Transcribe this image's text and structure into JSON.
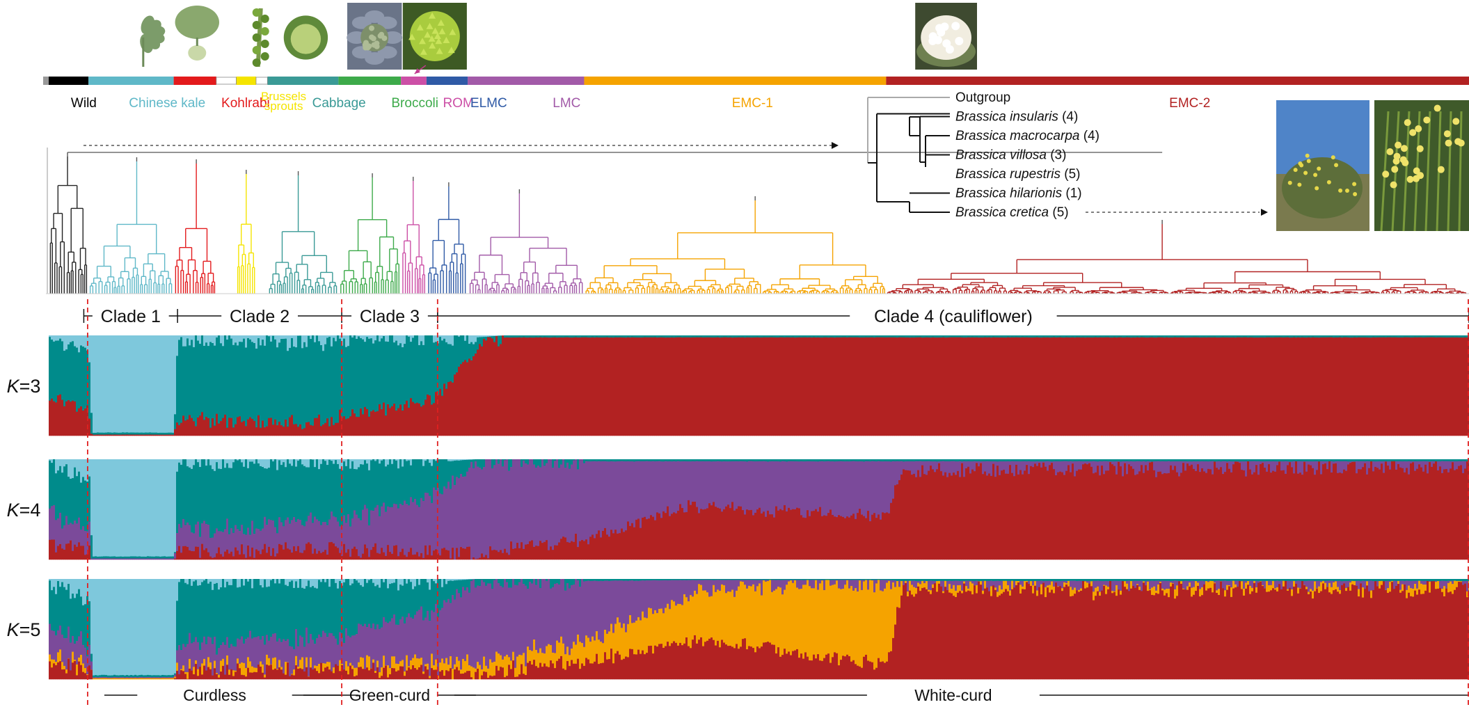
{
  "groups": [
    {
      "label": "Wild",
      "color": "#000000",
      "start": 0.0,
      "end": 0.028,
      "label_x": 0.0247
    },
    {
      "label": "Chinese kale",
      "color": "#5fb8c8",
      "start": 0.028,
      "end": 0.088,
      "label_x": 0.0834
    },
    {
      "label": "Kohlrabi",
      "color": "#e31a1c",
      "start": 0.088,
      "end": 0.118,
      "label_x": 0.1386
    },
    {
      "label": "Brussels sprouts",
      "color": "#f5e400",
      "start": 0.132,
      "end": 0.146,
      "label_x": 0.1654
    },
    {
      "label": "Cabbage",
      "color": "#3a9a96",
      "start": 0.154,
      "end": 0.204,
      "label_x": 0.2044
    },
    {
      "label": "Broccoli",
      "color": "#3daa4a",
      "start": 0.204,
      "end": 0.248,
      "label_x": 0.2578
    },
    {
      "label": "ROM",
      "color": "#cc4fa6",
      "start": 0.248,
      "end": 0.266,
      "label_x": 0.2884
    },
    {
      "label": "ELMC",
      "color": "#2f5aa6",
      "start": 0.266,
      "end": 0.295,
      "label_x": 0.3098
    },
    {
      "label": "LMC",
      "color": "#a25aa8",
      "start": 0.295,
      "end": 0.377,
      "label_x": 0.3647
    },
    {
      "label": "EMC-1",
      "color": "#f5a300",
      "start": 0.377,
      "end": 0.5896,
      "label_x": 0.4955
    },
    {
      "label": "EMC-2",
      "color": "#b22222",
      "start": 0.5896,
      "end": 1.0,
      "label_x": 0.8034
    }
  ],
  "gap_segments": [
    {
      "start": 0.118,
      "end": 0.132
    },
    {
      "start": 0.146,
      "end": 0.154
    }
  ],
  "photos": [
    {
      "name": "wild-cabbage-photo",
      "x": 0.0457,
      "w": 0.0417,
      "kind": "leafy"
    },
    {
      "name": "chinese-kale-photo",
      "x": 0.087,
      "w": 0.035,
      "kind": "kale"
    },
    {
      "name": "brussels-sprouts-photo",
      "x": 0.1358,
      "w": 0.027,
      "kind": "sprouts"
    },
    {
      "name": "cabbage-photo",
      "x": 0.1645,
      "w": 0.033,
      "kind": "cabbage"
    },
    {
      "name": "broccoli-photo",
      "x": 0.2102,
      "w": 0.0384,
      "kind": "broccoli"
    },
    {
      "name": "romanesco-photo",
      "x": 0.2493,
      "w": 0.0451,
      "kind": "romanesco"
    },
    {
      "name": "cauliflower-photo",
      "x": 0.6101,
      "w": 0.0435,
      "kind": "cauliflower"
    }
  ],
  "outgroup": {
    "items": [
      {
        "taxon": "Outgroup",
        "count": "",
        "italic": false
      },
      {
        "taxon": "Brassica insularis",
        "count": "(4)",
        "italic": true
      },
      {
        "taxon": "Brassica macrocarpa",
        "count": "(4)",
        "italic": true
      },
      {
        "taxon": "Brassica villosa",
        "count": "(3)",
        "italic": true
      },
      {
        "taxon": "Brassica rupestris",
        "count": "(5)",
        "italic": true
      },
      {
        "taxon": "Brassica hilarionis",
        "count": "(1)",
        "italic": true
      },
      {
        "taxon": "Brassica cretica",
        "count": "(5)",
        "italic": true
      }
    ]
  },
  "clades": [
    {
      "label": "Clade 1",
      "start": 0.0247,
      "end": 0.0907,
      "ticks": true
    },
    {
      "label": "Clade 2",
      "start": 0.0907,
      "end": 0.2063,
      "ticks": false
    },
    {
      "label": "Clade 3",
      "start": 0.2063,
      "end": 0.2738,
      "ticks": true
    },
    {
      "label": "Clade 4 (cauliflower)",
      "start": 0.2738,
      "end": 1.0,
      "ticks": true
    }
  ],
  "structure": {
    "k_label_prefix": "K",
    "panels": [
      {
        "k": "3",
        "label": "=3",
        "colors": [
          "#7ec8dc",
          "#008b8b",
          "#b22222"
        ],
        "profile": [
          {
            "x": 0.0,
            "p": [
              0.05,
              0.6,
              0.35
            ]
          },
          {
            "x": 0.028,
            "p": [
              0.2,
              0.55,
              0.25
            ]
          },
          {
            "x": 0.03,
            "p": [
              0.97,
              0.02,
              0.01
            ]
          },
          {
            "x": 0.088,
            "p": [
              0.97,
              0.02,
              0.01
            ]
          },
          {
            "x": 0.09,
            "p": [
              0.05,
              0.8,
              0.15
            ]
          },
          {
            "x": 0.2,
            "p": [
              0.08,
              0.78,
              0.14
            ]
          },
          {
            "x": 0.206,
            "p": [
              0.05,
              0.75,
              0.2
            ]
          },
          {
            "x": 0.27,
            "p": [
              0.03,
              0.6,
              0.37
            ]
          },
          {
            "x": 0.3,
            "p": [
              0.02,
              0.12,
              0.86
            ]
          },
          {
            "x": 0.32,
            "p": [
              0.0,
              0.02,
              0.98
            ]
          },
          {
            "x": 1.0,
            "p": [
              0.0,
              0.02,
              0.98
            ]
          }
        ]
      },
      {
        "k": "4",
        "label": "=4",
        "colors": [
          "#7ec8dc",
          "#008b8b",
          "#7b4a9a",
          "#b22222"
        ],
        "profile": [
          {
            "x": 0.0,
            "p": [
              0.05,
              0.5,
              0.3,
              0.15
            ]
          },
          {
            "x": 0.028,
            "p": [
              0.2,
              0.5,
              0.2,
              0.1
            ]
          },
          {
            "x": 0.03,
            "p": [
              0.97,
              0.02,
              0.01,
              0.0
            ]
          },
          {
            "x": 0.088,
            "p": [
              0.97,
              0.02,
              0.01,
              0.0
            ]
          },
          {
            "x": 0.09,
            "p": [
              0.03,
              0.68,
              0.22,
              0.07
            ]
          },
          {
            "x": 0.2,
            "p": [
              0.03,
              0.55,
              0.3,
              0.12
            ]
          },
          {
            "x": 0.206,
            "p": [
              0.03,
              0.55,
              0.32,
              0.1
            ]
          },
          {
            "x": 0.27,
            "p": [
              0.03,
              0.35,
              0.55,
              0.07
            ]
          },
          {
            "x": 0.3,
            "p": [
              0.0,
              0.05,
              0.88,
              0.07
            ]
          },
          {
            "x": 0.377,
            "p": [
              0.0,
              0.02,
              0.78,
              0.2
            ]
          },
          {
            "x": 0.45,
            "p": [
              0.0,
              0.02,
              0.45,
              0.53
            ]
          },
          {
            "x": 0.5896,
            "p": [
              0.0,
              0.02,
              0.55,
              0.43
            ]
          },
          {
            "x": 0.6,
            "p": [
              0.0,
              0.02,
              0.1,
              0.88
            ]
          },
          {
            "x": 1.0,
            "p": [
              0.0,
              0.02,
              0.06,
              0.92
            ]
          }
        ]
      },
      {
        "k": "5",
        "label": "=5",
        "colors": [
          "#7ec8dc",
          "#008b8b",
          "#7b4a9a",
          "#f5a300",
          "#b22222"
        ],
        "profile": [
          {
            "x": 0.0,
            "p": [
              0.05,
              0.45,
              0.3,
              0.05,
              0.15
            ]
          },
          {
            "x": 0.028,
            "p": [
              0.2,
              0.45,
              0.2,
              0.05,
              0.1
            ]
          },
          {
            "x": 0.03,
            "p": [
              0.96,
              0.02,
              0.01,
              0.01,
              0.0
            ]
          },
          {
            "x": 0.088,
            "p": [
              0.96,
              0.02,
              0.01,
              0.01,
              0.0
            ]
          },
          {
            "x": 0.09,
            "p": [
              0.03,
              0.62,
              0.22,
              0.05,
              0.08
            ]
          },
          {
            "x": 0.206,
            "p": [
              0.03,
              0.52,
              0.3,
              0.05,
              0.1
            ]
          },
          {
            "x": 0.27,
            "p": [
              0.03,
              0.3,
              0.5,
              0.1,
              0.07
            ]
          },
          {
            "x": 0.3,
            "p": [
              0.0,
              0.05,
              0.8,
              0.1,
              0.05
            ]
          },
          {
            "x": 0.377,
            "p": [
              0.0,
              0.02,
              0.6,
              0.2,
              0.18
            ]
          },
          {
            "x": 0.46,
            "p": [
              0.0,
              0.01,
              0.1,
              0.5,
              0.39
            ]
          },
          {
            "x": 0.56,
            "p": [
              0.0,
              0.01,
              0.05,
              0.75,
              0.19
            ]
          },
          {
            "x": 0.5896,
            "p": [
              0.0,
              0.01,
              0.05,
              0.8,
              0.14
            ]
          },
          {
            "x": 0.6,
            "p": [
              0.0,
              0.02,
              0.04,
              0.04,
              0.9
            ]
          },
          {
            "x": 1.0,
            "p": [
              0.0,
              0.02,
              0.04,
              0.03,
              0.91
            ]
          }
        ]
      }
    ],
    "dashed_boundaries": [
      0.0274,
      0.2063,
      0.2738
    ]
  },
  "curd": [
    {
      "label": "Curdless",
      "start": 0.0274,
      "end": 0.2063
    },
    {
      "label": "Green-curd",
      "start": 0.2063,
      "end": 0.2738
    },
    {
      "label": "White-curd",
      "start": 0.2738,
      "end": 1.0
    }
  ],
  "colors": {
    "dashed": "#e02020",
    "arrow": "#c0398f",
    "outgroup_line": "#aaaaaa"
  }
}
